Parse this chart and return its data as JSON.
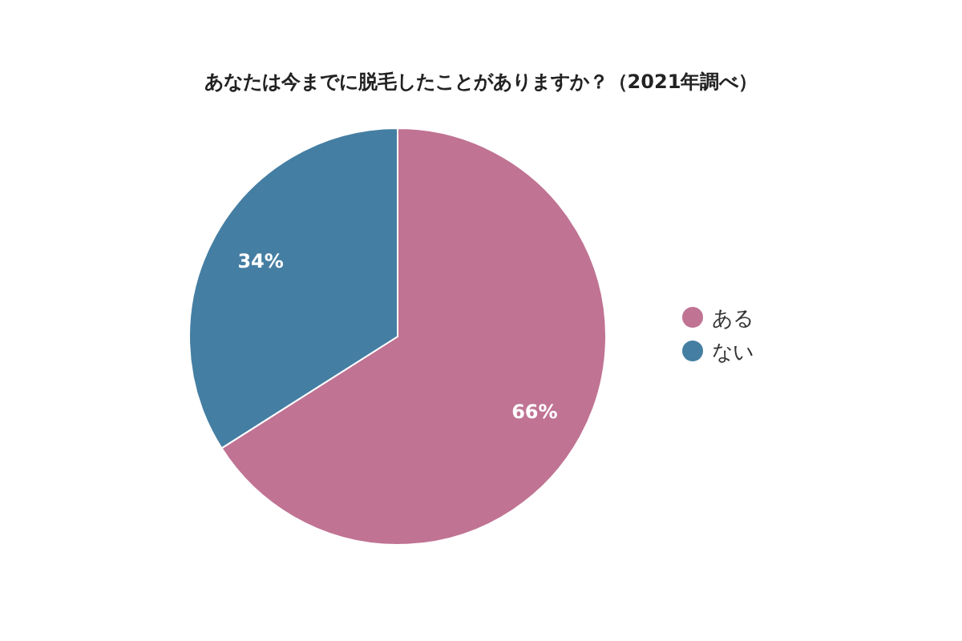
{
  "chart_data": {
    "type": "pie",
    "title": "あなたは今までに脱毛したことがありますか？（2021年調べ）",
    "categories": [
      "ある",
      "ない"
    ],
    "values": [
      66,
      34
    ],
    "value_labels": [
      "66%",
      "34%"
    ],
    "colors": [
      "#c07393",
      "#457ea3"
    ],
    "legend": "right"
  }
}
